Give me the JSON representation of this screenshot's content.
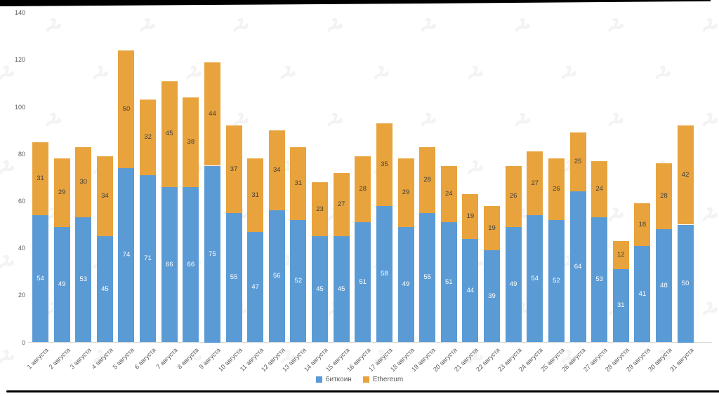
{
  "chart_data": {
    "type": "bar",
    "stacked": true,
    "title": "",
    "xlabel": "",
    "ylabel": "",
    "ylim": [
      0,
      140
    ],
    "yticks": [
      0,
      20,
      40,
      60,
      80,
      100,
      120,
      140
    ],
    "grid": false,
    "legend_position": "bottom",
    "categories": [
      "1 августа",
      "2 августа",
      "3 августа",
      "4 августа",
      "5 августа",
      "6 августа",
      "7 августа",
      "8 августа",
      "9 августа",
      "10 августа",
      "11 августа",
      "12 августа",
      "13 августа",
      "14 августа",
      "15 августа",
      "16 августа",
      "17 августа",
      "18 августа",
      "19 августа",
      "20 августа",
      "21 августа",
      "22 августа",
      "23 августа",
      "24 августа",
      "25 августа",
      "26 августа",
      "27 августа",
      "28 августа",
      "29 августа",
      "30 августа",
      "31 августа"
    ],
    "series": [
      {
        "name": "биткоин",
        "color": "#5B9BD5",
        "label_color": "#ffffff",
        "values": [
          54,
          49,
          53,
          45,
          74,
          71,
          66,
          66,
          75,
          55,
          47,
          56,
          52,
          45,
          45,
          51,
          58,
          49,
          55,
          51,
          44,
          39,
          49,
          54,
          52,
          64,
          53,
          31,
          41,
          48,
          50
        ]
      },
      {
        "name": "Ethereum",
        "color": "#E8A33C",
        "label_color": "#3f3f3f",
        "values": [
          31,
          29,
          30,
          34,
          50,
          32,
          45,
          38,
          44,
          37,
          31,
          34,
          31,
          23,
          27,
          28,
          35,
          29,
          28,
          24,
          19,
          19,
          26,
          27,
          26,
          25,
          24,
          12,
          18,
          28,
          42
        ]
      }
    ]
  },
  "axis": {
    "tick_color": "#595959",
    "line_color": "#d9d9d9"
  },
  "watermark": {
    "icon": "forklog-logo",
    "color": "#f3f3f3"
  }
}
